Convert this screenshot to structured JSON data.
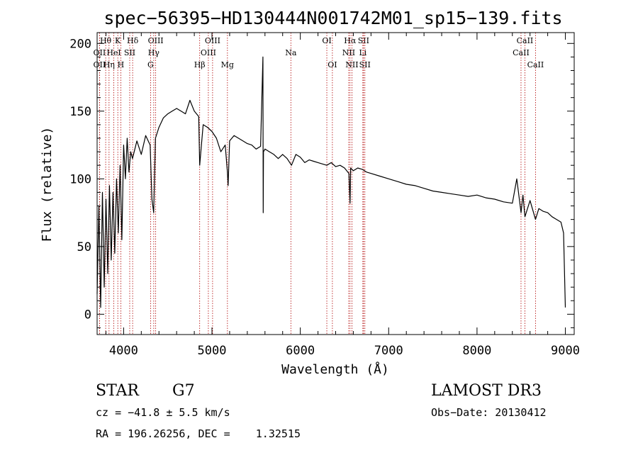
{
  "chart_data": {
    "type": "line",
    "title": "spec−56395−HD130444N001742M01_sp15−139.fits",
    "xlabel": "Wavelength (Å)",
    "ylabel": "Flux (relative)",
    "xlim": [
      3700,
      9100
    ],
    "ylim": [
      -15,
      208
    ],
    "x_ticks": [
      4000,
      5000,
      6000,
      7000,
      8000,
      9000
    ],
    "y_ticks": [
      0,
      50,
      100,
      150,
      200
    ],
    "grid": false,
    "series": [
      {
        "line_color": "#000000",
        "x": [
          3700,
          3720,
          3740,
          3760,
          3780,
          3800,
          3820,
          3840,
          3860,
          3880,
          3900,
          3920,
          3940,
          3960,
          3980,
          4000,
          4020,
          4040,
          4060,
          4080,
          4100,
          4150,
          4200,
          4250,
          4300,
          4320,
          4340,
          4360,
          4400,
          4450,
          4500,
          4550,
          4600,
          4650,
          4700,
          4750,
          4800,
          4850,
          4861,
          4900,
          4950,
          5000,
          5050,
          5100,
          5150,
          5175,
          5183,
          5200,
          5250,
          5300,
          5350,
          5400,
          5450,
          5500,
          5550,
          5577,
          5580,
          5583,
          5600,
          5650,
          5700,
          5750,
          5800,
          5850,
          5900,
          5950,
          6000,
          6050,
          6100,
          6150,
          6200,
          6250,
          6300,
          6350,
          6400,
          6450,
          6500,
          6550,
          6563,
          6570,
          6600,
          6650,
          6700,
          6750,
          6800,
          6900,
          7000,
          7100,
          7200,
          7300,
          7400,
          7500,
          7600,
          7700,
          7800,
          7900,
          8000,
          8100,
          8200,
          8300,
          8400,
          8450,
          8498,
          8520,
          8542,
          8600,
          8662,
          8700,
          8750,
          8800,
          8850,
          8900,
          8950,
          8980,
          9000
        ],
        "y": [
          15,
          80,
          5,
          90,
          20,
          85,
          30,
          95,
          40,
          90,
          45,
          100,
          60,
          110,
          55,
          125,
          100,
          130,
          105,
          120,
          115,
          128,
          118,
          132,
          125,
          85,
          75,
          130,
          138,
          145,
          148,
          150,
          152,
          150,
          148,
          158,
          150,
          146,
          110,
          140,
          138,
          135,
          130,
          120,
          125,
          105,
          95,
          128,
          132,
          130,
          128,
          126,
          125,
          122,
          124,
          190,
          75,
          120,
          122,
          120,
          118,
          115,
          118,
          115,
          110,
          118,
          116,
          112,
          114,
          113,
          112,
          111,
          110,
          112,
          109,
          110,
          108,
          104,
          82,
          108,
          106,
          108,
          107,
          105,
          104,
          102,
          100,
          98,
          96,
          95,
          93,
          91,
          90,
          89,
          88,
          87,
          88,
          86,
          85,
          83,
          82,
          100,
          75,
          88,
          72,
          84,
          70,
          78,
          76,
          75,
          72,
          70,
          68,
          60,
          5
        ],
        "name": ""
      }
    ],
    "lines": [
      {
        "label": "Hθ",
        "x": 3797,
        "row": 0
      },
      {
        "label": "OII",
        "x": 3727,
        "row": 1
      },
      {
        "label": "OII",
        "x": 3727,
        "row": 2
      },
      {
        "label": "K",
        "x": 3934,
        "row": 0
      },
      {
        "label": "HeI",
        "x": 3889,
        "row": 1
      },
      {
        "label": "Hη",
        "x": 3835,
        "row": 2
      },
      {
        "label": "Hδ",
        "x": 4102,
        "row": 0
      },
      {
        "label": "SII",
        "x": 4069,
        "row": 1
      },
      {
        "label": "H",
        "x": 3968,
        "row": 2
      },
      {
        "label": "OIII",
        "x": 4363,
        "row": 0
      },
      {
        "label": "Hγ",
        "x": 4341,
        "row": 1
      },
      {
        "label": "G",
        "x": 4305,
        "row": 2
      },
      {
        "label": "OIII",
        "x": 5007,
        "row": 0
      },
      {
        "label": "OIII",
        "x": 4959,
        "row": 1
      },
      {
        "label": "Hβ",
        "x": 4861,
        "row": 2
      },
      {
        "label": "Mg",
        "x": 5175,
        "row": 2
      },
      {
        "label": "Na",
        "x": 5893,
        "row": 1
      },
      {
        "label": "OI",
        "x": 6300,
        "row": 0
      },
      {
        "label": "OI",
        "x": 6363,
        "row": 2
      },
      {
        "label": "Hα",
        "x": 6563,
        "row": 0
      },
      {
        "label": "NII",
        "x": 6548,
        "row": 1
      },
      {
        "label": "NII",
        "x": 6584,
        "row": 2
      },
      {
        "label": "SII",
        "x": 6716,
        "row": 0
      },
      {
        "label": "Li",
        "x": 6708,
        "row": 1
      },
      {
        "label": "SII",
        "x": 6731,
        "row": 2
      },
      {
        "label": "CaII",
        "x": 8542,
        "row": 0
      },
      {
        "label": "CaII",
        "x": 8498,
        "row": 1
      },
      {
        "label": "CaII",
        "x": 8662,
        "row": 2
      }
    ]
  },
  "info": {
    "object_class": "STAR",
    "subclass": "G7",
    "survey": "LAMOST DR3",
    "cz": "cz = −41.8 ± 5.5 km/s",
    "obs_date": "Obs−Date: 20130412",
    "coords": "RA = 196.26256, DEC =    1.32515"
  }
}
